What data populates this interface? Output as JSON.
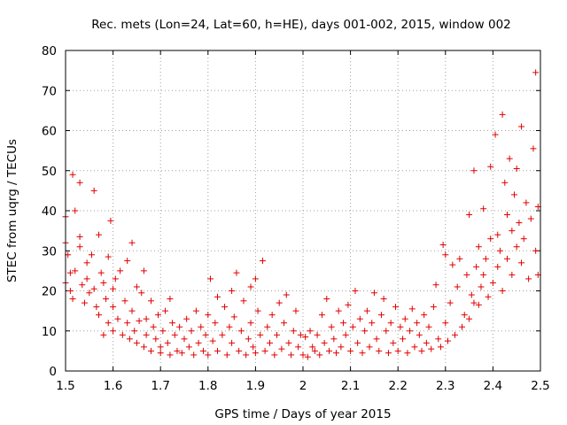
{
  "chart_data": {
    "type": "scatter",
    "title": "Rec. mets (Lon=24, Lat=60, h=HE), days 001-002, 2015, window 002",
    "xlabel": "GPS time / Days of year 2015",
    "ylabel": "STEC from uqrg / TECUs",
    "xlim": [
      1.5,
      2.5
    ],
    "ylim": [
      0,
      80
    ],
    "x_ticks": [
      1.5,
      1.6,
      1.7,
      1.8,
      1.9,
      2.0,
      2.1,
      2.2,
      2.3,
      2.4,
      2.5
    ],
    "x_tick_labels": [
      "1.5",
      "1.6",
      "1.7",
      "1.8",
      "1.9",
      "2",
      "2.1",
      "2.2",
      "2.3",
      "2.4",
      "2.5"
    ],
    "y_ticks": [
      0,
      10,
      20,
      30,
      40,
      50,
      60,
      70,
      80
    ],
    "y_tick_labels": [
      "0",
      "10",
      "20",
      "30",
      "40",
      "50",
      "60",
      "70",
      "80"
    ],
    "grid": true,
    "marker": "+",
    "marker_color": "#e00000",
    "series": [
      {
        "name": "STEC",
        "points": [
          [
            1.5,
            38.5
          ],
          [
            1.5,
            32
          ],
          [
            1.5,
            22
          ],
          [
            1.505,
            29
          ],
          [
            1.51,
            24.5
          ],
          [
            1.51,
            20
          ],
          [
            1.515,
            49
          ],
          [
            1.52,
            40
          ],
          [
            1.515,
            18
          ],
          [
            1.52,
            25
          ],
          [
            1.53,
            47
          ],
          [
            1.53,
            33.5
          ],
          [
            1.53,
            31
          ],
          [
            1.535,
            21.5
          ],
          [
            1.54,
            17
          ],
          [
            1.545,
            27
          ],
          [
            1.545,
            23
          ],
          [
            1.55,
            19.5
          ],
          [
            1.555,
            29
          ],
          [
            1.56,
            45
          ],
          [
            1.56,
            20.5
          ],
          [
            1.565,
            16
          ],
          [
            1.57,
            34
          ],
          [
            1.57,
            14
          ],
          [
            1.575,
            24.5
          ],
          [
            1.58,
            9
          ],
          [
            1.58,
            22
          ],
          [
            1.585,
            18
          ],
          [
            1.59,
            28.5
          ],
          [
            1.59,
            12
          ],
          [
            1.595,
            37.5
          ],
          [
            1.6,
            20.5
          ],
          [
            1.6,
            16
          ],
          [
            1.6,
            10
          ],
          [
            1.605,
            23
          ],
          [
            1.61,
            13
          ],
          [
            1.615,
            25
          ],
          [
            1.62,
            9
          ],
          [
            1.625,
            17.5
          ],
          [
            1.63,
            27.5
          ],
          [
            1.63,
            12
          ],
          [
            1.635,
            8
          ],
          [
            1.64,
            32
          ],
          [
            1.64,
            15
          ],
          [
            1.645,
            10
          ],
          [
            1.65,
            21
          ],
          [
            1.65,
            7
          ],
          [
            1.655,
            12.5
          ],
          [
            1.66,
            19.5
          ],
          [
            1.665,
            25
          ],
          [
            1.665,
            6
          ],
          [
            1.67,
            13
          ],
          [
            1.67,
            9
          ],
          [
            1.68,
            17.5
          ],
          [
            1.68,
            5
          ],
          [
            1.685,
            11
          ],
          [
            1.69,
            8
          ],
          [
            1.695,
            14
          ],
          [
            1.7,
            6
          ],
          [
            1.7,
            4.5
          ],
          [
            1.705,
            10
          ],
          [
            1.71,
            15
          ],
          [
            1.715,
            7
          ],
          [
            1.72,
            18
          ],
          [
            1.72,
            4
          ],
          [
            1.725,
            12
          ],
          [
            1.73,
            9
          ],
          [
            1.735,
            5
          ],
          [
            1.74,
            11
          ],
          [
            1.745,
            4.5
          ],
          [
            1.75,
            8
          ],
          [
            1.755,
            13
          ],
          [
            1.76,
            6
          ],
          [
            1.765,
            10
          ],
          [
            1.77,
            4
          ],
          [
            1.775,
            15
          ],
          [
            1.78,
            7
          ],
          [
            1.785,
            11
          ],
          [
            1.79,
            5
          ],
          [
            1.795,
            9
          ],
          [
            1.8,
            14
          ],
          [
            1.8,
            4
          ],
          [
            1.805,
            23
          ],
          [
            1.81,
            7.5
          ],
          [
            1.815,
            12
          ],
          [
            1.82,
            18.5
          ],
          [
            1.82,
            5
          ],
          [
            1.83,
            9
          ],
          [
            1.835,
            16
          ],
          [
            1.84,
            4
          ],
          [
            1.845,
            11
          ],
          [
            1.85,
            20
          ],
          [
            1.85,
            7
          ],
          [
            1.855,
            13.5
          ],
          [
            1.86,
            24.5
          ],
          [
            1.865,
            5
          ],
          [
            1.87,
            10
          ],
          [
            1.875,
            17.5
          ],
          [
            1.88,
            4
          ],
          [
            1.885,
            8
          ],
          [
            1.89,
            21
          ],
          [
            1.89,
            12
          ],
          [
            1.895,
            6
          ],
          [
            1.9,
            23
          ],
          [
            1.9,
            4.5
          ],
          [
            1.905,
            15
          ],
          [
            1.91,
            9
          ],
          [
            1.915,
            27.5
          ],
          [
            1.92,
            5
          ],
          [
            1.925,
            11
          ],
          [
            1.93,
            7
          ],
          [
            1.935,
            14
          ],
          [
            1.94,
            4
          ],
          [
            1.945,
            9
          ],
          [
            1.95,
            17
          ],
          [
            1.955,
            5.5
          ],
          [
            1.96,
            12
          ],
          [
            1.965,
            19
          ],
          [
            1.97,
            7
          ],
          [
            1.975,
            4
          ],
          [
            1.98,
            10
          ],
          [
            1.985,
            15
          ],
          [
            1.99,
            6
          ],
          [
            1.995,
            9
          ],
          [
            2.0,
            4
          ],
          [
            2.005,
            8.5
          ],
          [
            2.01,
            3.5
          ],
          [
            2.015,
            10
          ],
          [
            2.02,
            6
          ],
          [
            2.025,
            5
          ],
          [
            2.03,
            9
          ],
          [
            2.035,
            4
          ],
          [
            2.04,
            14
          ],
          [
            2.045,
            7
          ],
          [
            2.05,
            18
          ],
          [
            2.055,
            5
          ],
          [
            2.06,
            11
          ],
          [
            2.065,
            8
          ],
          [
            2.07,
            4.5
          ],
          [
            2.075,
            15
          ],
          [
            2.08,
            6
          ],
          [
            2.085,
            12
          ],
          [
            2.09,
            9
          ],
          [
            2.095,
            16.5
          ],
          [
            2.1,
            5
          ],
          [
            2.105,
            11
          ],
          [
            2.11,
            20
          ],
          [
            2.115,
            7
          ],
          [
            2.12,
            13
          ],
          [
            2.125,
            4.5
          ],
          [
            2.13,
            10
          ],
          [
            2.135,
            15
          ],
          [
            2.14,
            6
          ],
          [
            2.145,
            12
          ],
          [
            2.15,
            19.5
          ],
          [
            2.155,
            8
          ],
          [
            2.16,
            5
          ],
          [
            2.165,
            14
          ],
          [
            2.17,
            18
          ],
          [
            2.175,
            10
          ],
          [
            2.18,
            4.5
          ],
          [
            2.185,
            12
          ],
          [
            2.19,
            7
          ],
          [
            2.195,
            16
          ],
          [
            2.2,
            5
          ],
          [
            2.205,
            11
          ],
          [
            2.21,
            8
          ],
          [
            2.215,
            13
          ],
          [
            2.22,
            4.5
          ],
          [
            2.225,
            10
          ],
          [
            2.23,
            15.5
          ],
          [
            2.235,
            6
          ],
          [
            2.24,
            12
          ],
          [
            2.245,
            9
          ],
          [
            2.25,
            5
          ],
          [
            2.255,
            14
          ],
          [
            2.26,
            7
          ],
          [
            2.265,
            11
          ],
          [
            2.27,
            5.5
          ],
          [
            2.275,
            16
          ],
          [
            2.28,
            21.5
          ],
          [
            2.285,
            8
          ],
          [
            2.29,
            6
          ],
          [
            2.295,
            31.5
          ],
          [
            2.3,
            29
          ],
          [
            2.3,
            12
          ],
          [
            2.305,
            7.5
          ],
          [
            2.31,
            17
          ],
          [
            2.315,
            26.5
          ],
          [
            2.32,
            9
          ],
          [
            2.325,
            21
          ],
          [
            2.33,
            28
          ],
          [
            2.335,
            11
          ],
          [
            2.34,
            14
          ],
          [
            2.345,
            24
          ],
          [
            2.35,
            39
          ],
          [
            2.35,
            13
          ],
          [
            2.355,
            19
          ],
          [
            2.36,
            50
          ],
          [
            2.36,
            17
          ],
          [
            2.365,
            26
          ],
          [
            2.37,
            31
          ],
          [
            2.37,
            16.5
          ],
          [
            2.375,
            21
          ],
          [
            2.38,
            40.5
          ],
          [
            2.38,
            24
          ],
          [
            2.385,
            28
          ],
          [
            2.39,
            18.5
          ],
          [
            2.395,
            51
          ],
          [
            2.395,
            33
          ],
          [
            2.4,
            22
          ],
          [
            2.405,
            59
          ],
          [
            2.41,
            34
          ],
          [
            2.41,
            26
          ],
          [
            2.415,
            30
          ],
          [
            2.42,
            64
          ],
          [
            2.42,
            20
          ],
          [
            2.425,
            47
          ],
          [
            2.43,
            39
          ],
          [
            2.43,
            28
          ],
          [
            2.435,
            53
          ],
          [
            2.44,
            35
          ],
          [
            2.44,
            24
          ],
          [
            2.445,
            44
          ],
          [
            2.45,
            50.5
          ],
          [
            2.45,
            31
          ],
          [
            2.455,
            37
          ],
          [
            2.46,
            61
          ],
          [
            2.46,
            27
          ],
          [
            2.465,
            33
          ],
          [
            2.47,
            42
          ],
          [
            2.475,
            23
          ],
          [
            2.48,
            38
          ],
          [
            2.485,
            55.5
          ],
          [
            2.49,
            74.5
          ],
          [
            2.49,
            30
          ],
          [
            2.495,
            41
          ],
          [
            2.495,
            24
          ]
        ]
      }
    ]
  }
}
